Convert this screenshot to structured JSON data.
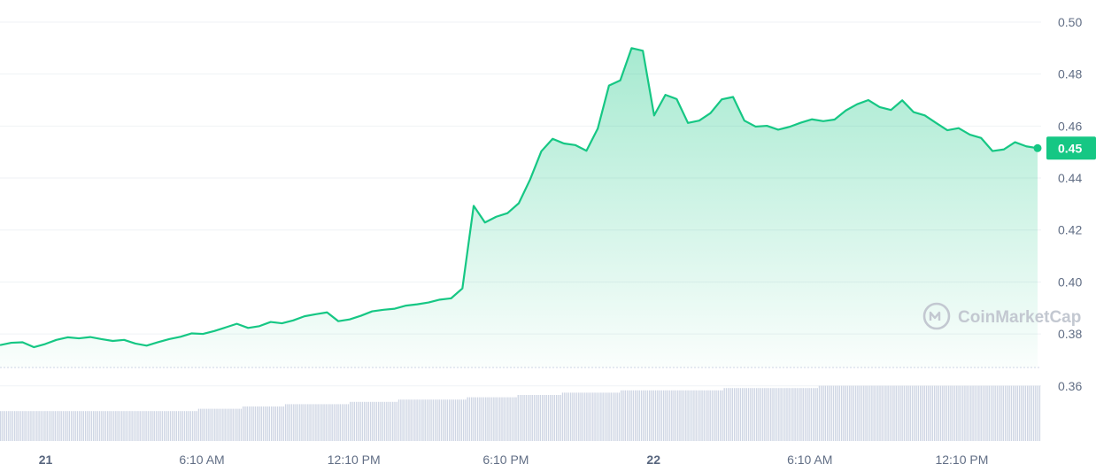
{
  "chart_data": {
    "type": "area",
    "title": "",
    "xlabel": "",
    "ylabel": "",
    "ylim": [
      0.34,
      0.505
    ],
    "yticks": [
      0.36,
      0.38,
      0.4,
      0.42,
      0.44,
      0.46,
      0.48,
      0.5
    ],
    "ytick_labels": [
      "0.36",
      "0.38",
      "0.40",
      "0.42",
      "0.44",
      "0.46",
      "0.48",
      "0.50"
    ],
    "xticks": [
      {
        "label": "21",
        "t": 0.8,
        "bold": true
      },
      {
        "label": "6:10 AM",
        "t": 6.97,
        "bold": false
      },
      {
        "label": "12:10 PM",
        "t": 12.97,
        "bold": false
      },
      {
        "label": "6:10 PM",
        "t": 18.97,
        "bold": false
      },
      {
        "label": "22",
        "t": 24.8,
        "bold": true
      },
      {
        "label": "6:10 AM",
        "t": 30.97,
        "bold": false
      },
      {
        "label": "12:10 PM",
        "t": 36.97,
        "bold": false
      }
    ],
    "x_range_hours": [
      -1.0,
      40.1
    ],
    "grid": true,
    "line_color": "#16c784",
    "volume_color": "#cfd6e4",
    "last_value_label": "0.45",
    "watermark": "CoinMarketCap",
    "price": [
      0.3757,
      0.3766,
      0.3768,
      0.3749,
      0.3761,
      0.3777,
      0.3787,
      0.3783,
      0.3788,
      0.378,
      0.3773,
      0.3777,
      0.3763,
      0.3755,
      0.3768,
      0.378,
      0.3789,
      0.3802,
      0.38,
      0.3811,
      0.3825,
      0.3839,
      0.3823,
      0.383,
      0.3846,
      0.3841,
      0.3852,
      0.3868,
      0.3876,
      0.3883,
      0.3849,
      0.3856,
      0.387,
      0.3887,
      0.3893,
      0.3897,
      0.3909,
      0.3914,
      0.3921,
      0.3932,
      0.3937,
      0.3975,
      0.4293,
      0.4229,
      0.4251,
      0.4265,
      0.4303,
      0.4394,
      0.4503,
      0.4551,
      0.4533,
      0.4527,
      0.4505,
      0.459,
      0.4756,
      0.4776,
      0.49,
      0.489,
      0.4641,
      0.472,
      0.4704,
      0.4612,
      0.4621,
      0.465,
      0.4703,
      0.4712,
      0.4621,
      0.4598,
      0.4601,
      0.4586,
      0.4597,
      0.4613,
      0.4626,
      0.4619,
      0.4625,
      0.466,
      0.4684,
      0.47,
      0.4673,
      0.4662,
      0.4699,
      0.4654,
      0.4641,
      0.4612,
      0.4584,
      0.4592,
      0.4567,
      0.4554,
      0.4504,
      0.451,
      0.4538,
      0.4522,
      0.4515
    ],
    "volume": [
      13,
      13,
      13,
      13,
      13,
      13,
      13,
      13,
      13,
      13,
      13,
      13,
      13,
      13,
      13,
      13,
      13,
      13,
      13,
      13,
      13,
      13,
      13,
      13,
      13,
      13,
      13,
      13,
      13,
      13,
      13,
      13,
      13,
      13,
      13,
      13,
      13,
      13,
      13,
      13,
      13,
      13,
      13,
      13,
      13,
      13,
      13,
      13,
      13,
      13,
      13,
      13,
      13,
      13,
      13,
      13,
      13,
      13,
      13,
      13,
      13,
      13,
      13,
      13,
      13,
      13,
      13,
      13,
      13,
      13,
      13,
      13,
      13,
      13,
      13,
      13,
      13,
      13,
      13,
      13,
      13,
      13,
      13,
      13,
      13,
      13,
      13,
      13,
      13,
      13,
      13,
      13,
      13,
      13,
      13,
      13,
      13,
      13,
      14,
      14,
      14,
      14,
      14,
      14,
      14,
      14,
      14,
      14,
      14,
      14,
      14,
      14,
      14,
      14,
      14,
      14,
      14,
      14,
      14,
      14,
      15,
      15,
      15,
      15,
      15,
      15,
      15,
      15,
      15,
      15,
      15,
      15,
      15,
      15,
      15,
      15,
      15,
      15,
      15,
      15,
      15,
      16,
      16,
      16,
      16,
      16,
      16,
      16,
      16,
      16,
      16,
      16,
      16,
      16,
      16,
      16,
      16,
      16,
      16,
      16,
      16,
      16,
      16,
      16,
      16,
      16,
      16,
      16,
      16,
      16,
      16,
      16,
      16,
      17,
      17,
      17,
      17,
      17,
      17,
      17,
      17,
      17,
      17,
      17,
      17,
      17,
      17,
      17,
      17,
      17,
      17,
      17,
      17,
      17,
      17,
      17,
      17,
      18,
      18,
      18,
      18,
      18,
      18,
      18,
      18,
      18,
      18,
      18,
      18,
      18,
      18,
      18,
      18,
      18,
      18,
      18,
      18,
      18,
      18,
      18,
      18,
      18,
      18,
      18,
      18,
      18,
      18,
      18,
      18,
      18,
      18,
      19,
      19,
      19,
      19,
      19,
      19,
      19,
      19,
      19,
      19,
      19,
      19,
      19,
      19,
      19,
      19,
      19,
      19,
      19,
      19,
      19,
      19,
      19,
      19,
      19,
      20,
      20,
      20,
      20,
      20,
      20,
      20,
      20,
      20,
      20,
      20,
      20,
      20,
      20,
      20,
      20,
      20,
      20,
      20,
      20,
      20,
      20,
      21,
      21,
      21,
      21,
      21,
      21,
      21,
      21,
      21,
      21,
      21,
      21,
      21,
      21,
      21,
      21,
      21,
      21,
      21,
      21,
      21,
      21,
      21,
      21,
      21,
      21,
      21,
      21,
      21,
      22,
      22,
      22,
      22,
      22,
      22,
      22,
      22,
      22,
      22,
      22,
      22,
      22,
      22,
      22,
      22,
      22,
      22,
      22,
      22,
      22,
      22,
      22,
      22,
      22,
      22,
      22,
      22,
      22,
      22,
      22,
      22,
      22,
      22,
      22,
      22,
      22,
      22,
      22,
      22,
      22,
      22,
      22,
      22,
      22,
      22,
      22,
      22,
      22,
      22,
      22,
      23,
      23,
      23,
      23,
      23,
      23,
      23,
      23,
      23,
      23,
      23,
      23,
      23,
      23,
      23,
      23,
      23,
      23,
      23,
      23,
      23,
      23,
      23,
      23,
      23,
      23,
      23,
      23,
      23,
      23,
      23,
      23,
      23,
      23,
      23,
      23,
      23,
      23,
      23,
      23,
      23,
      23,
      23,
      23,
      23,
      23,
      23,
      24,
      24,
      24,
      24,
      24,
      24,
      24,
      24,
      24,
      24,
      24,
      24,
      24,
      24,
      24,
      24,
      24,
      24,
      24,
      24,
      24,
      24,
      24,
      24,
      24,
      24,
      24,
      24,
      24,
      24,
      24,
      24,
      24,
      24,
      24,
      24,
      24,
      24,
      24,
      24,
      24,
      24,
      24,
      24,
      24,
      24,
      24,
      24,
      24,
      24,
      24,
      24,
      24,
      24,
      24,
      24,
      24,
      24,
      24,
      24,
      24,
      24,
      24,
      24,
      24,
      24,
      24,
      24,
      24,
      24,
      24,
      24,
      24,
      24,
      24,
      24,
      24,
      24,
      24,
      24,
      24,
      24,
      24,
      24,
      24,
      24,
      24,
      24,
      24,
      24,
      24,
      24,
      24,
      24,
      24,
      24,
      24,
      24,
      24,
      24,
      24,
      24,
      24,
      24,
      24,
      24,
      24,
      24,
      24,
      24
    ]
  }
}
